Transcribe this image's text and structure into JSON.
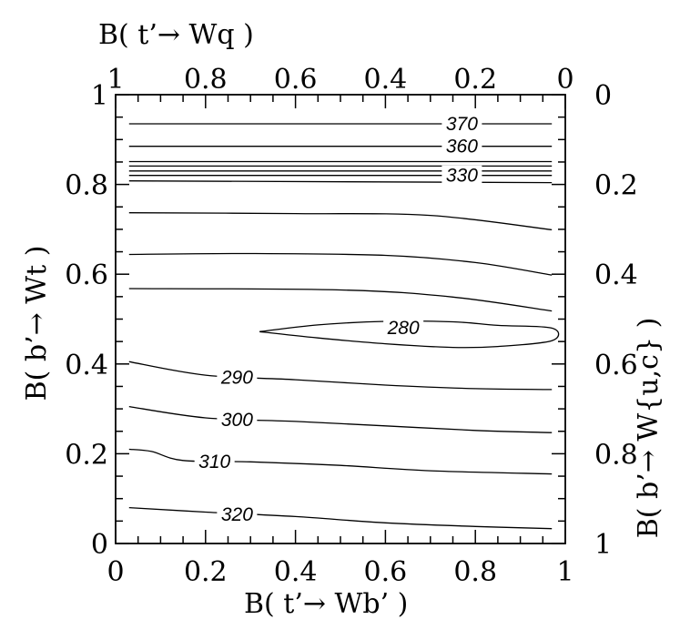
{
  "chart_data": {
    "type": "contour",
    "title": "",
    "xlabel": "B( t’→ Wb’ )",
    "ylabel": "B( b’→ Wt )",
    "top_xlabel": "B( t’→ Wq )",
    "right_ylabel": "B( b’→ W{u,c} )",
    "xlim": [
      0,
      1
    ],
    "ylim": [
      0,
      1
    ],
    "x_ticks": [
      "0",
      "0.2",
      "0.4",
      "0.6",
      "0.8",
      "1"
    ],
    "y_ticks": [
      "0",
      "0.2",
      "0.4",
      "0.6",
      "0.8",
      "1"
    ],
    "top_ticks": [
      "1",
      "0.8",
      "0.6",
      "0.4",
      "0.2",
      "0"
    ],
    "right_ticks": [
      "0",
      "0.2",
      "0.4",
      "0.6",
      "0.8",
      "1"
    ],
    "contours": [
      {
        "level": "370",
        "points": [
          [
            0.03,
            0.935
          ],
          [
            0.97,
            0.935
          ]
        ]
      },
      {
        "level": "360",
        "points": [
          [
            0.03,
            0.885
          ],
          [
            0.97,
            0.885
          ]
        ]
      },
      {
        "level": "",
        "points": [
          [
            0.03,
            0.851
          ],
          [
            0.97,
            0.851
          ]
        ]
      },
      {
        "level": "",
        "points": [
          [
            0.03,
            0.841
          ],
          [
            0.97,
            0.841
          ]
        ]
      },
      {
        "level": "",
        "points": [
          [
            0.03,
            0.83
          ],
          [
            0.97,
            0.83
          ]
        ]
      },
      {
        "level": "330",
        "points": [
          [
            0.03,
            0.82
          ],
          [
            0.97,
            0.82
          ]
        ]
      },
      {
        "level": "",
        "points": [
          [
            0.03,
            0.808
          ],
          [
            0.97,
            0.804
          ]
        ]
      },
      {
        "level": "",
        "points": [
          [
            0.03,
            0.737
          ],
          [
            0.4,
            0.735
          ],
          [
            0.7,
            0.731
          ],
          [
            0.97,
            0.699
          ]
        ]
      },
      {
        "level": "",
        "points": [
          [
            0.03,
            0.644
          ],
          [
            0.3,
            0.646
          ],
          [
            0.6,
            0.642
          ],
          [
            0.8,
            0.626
          ],
          [
            0.97,
            0.598
          ]
        ]
      },
      {
        "level": "",
        "points": [
          [
            0.03,
            0.568
          ],
          [
            0.5,
            0.565
          ],
          [
            0.75,
            0.549
          ],
          [
            0.97,
            0.518
          ]
        ]
      },
      {
        "level": "280",
        "closed": true,
        "points": [
          [
            0.32,
            0.472
          ],
          [
            0.45,
            0.487
          ],
          [
            0.6,
            0.495
          ],
          [
            0.75,
            0.494
          ],
          [
            0.85,
            0.486
          ],
          [
            0.97,
            0.48
          ],
          [
            0.97,
            0.452
          ],
          [
            0.85,
            0.439
          ],
          [
            0.75,
            0.437
          ],
          [
            0.6,
            0.445
          ],
          [
            0.45,
            0.458
          ],
          [
            0.32,
            0.472
          ]
        ]
      },
      {
        "level": "290",
        "points": [
          [
            0.03,
            0.405
          ],
          [
            0.2,
            0.375
          ],
          [
            0.4,
            0.365
          ],
          [
            0.6,
            0.353
          ],
          [
            0.8,
            0.345
          ],
          [
            0.97,
            0.343
          ]
        ]
      },
      {
        "level": "300",
        "points": [
          [
            0.03,
            0.305
          ],
          [
            0.2,
            0.28
          ],
          [
            0.4,
            0.272
          ],
          [
            0.6,
            0.262
          ],
          [
            0.8,
            0.252
          ],
          [
            0.97,
            0.247
          ]
        ]
      },
      {
        "level": "310",
        "points": [
          [
            0.03,
            0.21
          ],
          [
            0.08,
            0.205
          ],
          [
            0.15,
            0.185
          ],
          [
            0.3,
            0.182
          ],
          [
            0.5,
            0.174
          ],
          [
            0.7,
            0.162
          ],
          [
            0.97,
            0.155
          ]
        ]
      },
      {
        "level": "320",
        "points": [
          [
            0.03,
            0.08
          ],
          [
            0.2,
            0.07
          ],
          [
            0.4,
            0.06
          ],
          [
            0.6,
            0.046
          ],
          [
            0.8,
            0.038
          ],
          [
            0.97,
            0.033
          ]
        ]
      }
    ],
    "contour_labels": [
      {
        "text": "370",
        "x": 0.77,
        "y": 0.935
      },
      {
        "text": "360",
        "x": 0.77,
        "y": 0.885
      },
      {
        "text": "330",
        "x": 0.77,
        "y": 0.82
      },
      {
        "text": "280",
        "x": 0.64,
        "y": 0.481
      },
      {
        "text": "290",
        "x": 0.27,
        "y": 0.37
      },
      {
        "text": "300",
        "x": 0.27,
        "y": 0.276
      },
      {
        "text": "310",
        "x": 0.22,
        "y": 0.183
      },
      {
        "text": "320",
        "x": 0.27,
        "y": 0.065
      }
    ]
  }
}
